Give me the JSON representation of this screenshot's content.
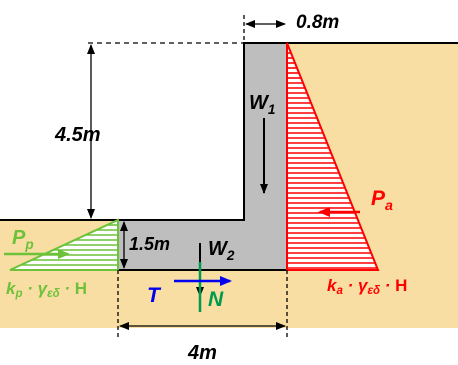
{
  "colors": {
    "soil": "#F8DEA2",
    "wall": "#BEBEBE",
    "active": "#FF0000",
    "passive": "#6DC23A",
    "reaction_t": "#0000EE",
    "reaction_n": "#009A4E",
    "outline": "#000000"
  },
  "labels": {
    "top_thickness": "0.8m",
    "wall_height": "4.5m",
    "footing_thickness": "1.5m",
    "base_width": "4m",
    "w1": {
      "main": "W",
      "sub": "1"
    },
    "w2": {
      "main": "W",
      "sub": "2"
    },
    "pa": {
      "main": "P",
      "sub": "a"
    },
    "pp": {
      "main": "P",
      "sub": "p"
    },
    "t": "T",
    "n": "N",
    "ka_expr": {
      "k": "k",
      "k_sub": "a",
      "dot1": " · ",
      "gamma": "γ",
      "gamma_sub": "εδ",
      "dot2": " · ",
      "h": "H"
    },
    "kp_expr": {
      "k": "k",
      "k_sub": "p",
      "dot1": " · ",
      "gamma": "γ",
      "gamma_sub": "εδ",
      "dot2": " · ",
      "h": "H"
    }
  }
}
